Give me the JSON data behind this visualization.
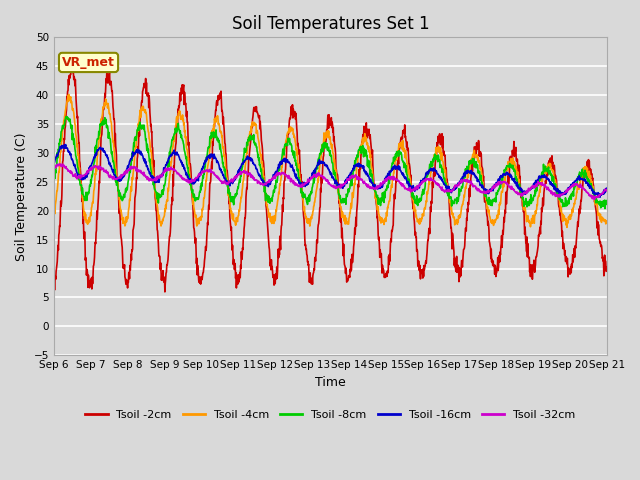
{
  "title": "Soil Temperatures Set 1",
  "xlabel": "Time",
  "ylabel": "Soil Temperature (C)",
  "ylim": [
    -5,
    50
  ],
  "yticks": [
    -5,
    0,
    5,
    10,
    15,
    20,
    25,
    30,
    35,
    40,
    45,
    50
  ],
  "x_tick_labels": [
    "Sep 6",
    "Sep 7",
    "Sep 8",
    "Sep 9",
    "Sep 10",
    "Sep 11",
    "Sep 12",
    "Sep 13",
    "Sep 14",
    "Sep 15",
    "Sep 16",
    "Sep 17",
    "Sep 18",
    "Sep 19",
    "Sep 20",
    "Sep 21"
  ],
  "annotation_text": "VR_met",
  "series": {
    "Tsoil -2cm": {
      "color": "#cc0000",
      "lw": 1.2
    },
    "Tsoil -4cm": {
      "color": "#ff9900",
      "lw": 1.2
    },
    "Tsoil -8cm": {
      "color": "#00cc00",
      "lw": 1.2
    },
    "Tsoil -16cm": {
      "color": "#0000cc",
      "lw": 1.2
    },
    "Tsoil -32cm": {
      "color": "#cc00cc",
      "lw": 1.2
    }
  },
  "legend_order": [
    "Tsoil -2cm",
    "Tsoil -4cm",
    "Tsoil -8cm",
    "Tsoil -16cm",
    "Tsoil -32cm"
  ],
  "bg_color": "#d9d9d9",
  "plot_bg_color": "#d9d9d9",
  "grid_color": "#ffffff",
  "title_fontsize": 12,
  "tick_fontsize": 7.5,
  "label_fontsize": 9
}
